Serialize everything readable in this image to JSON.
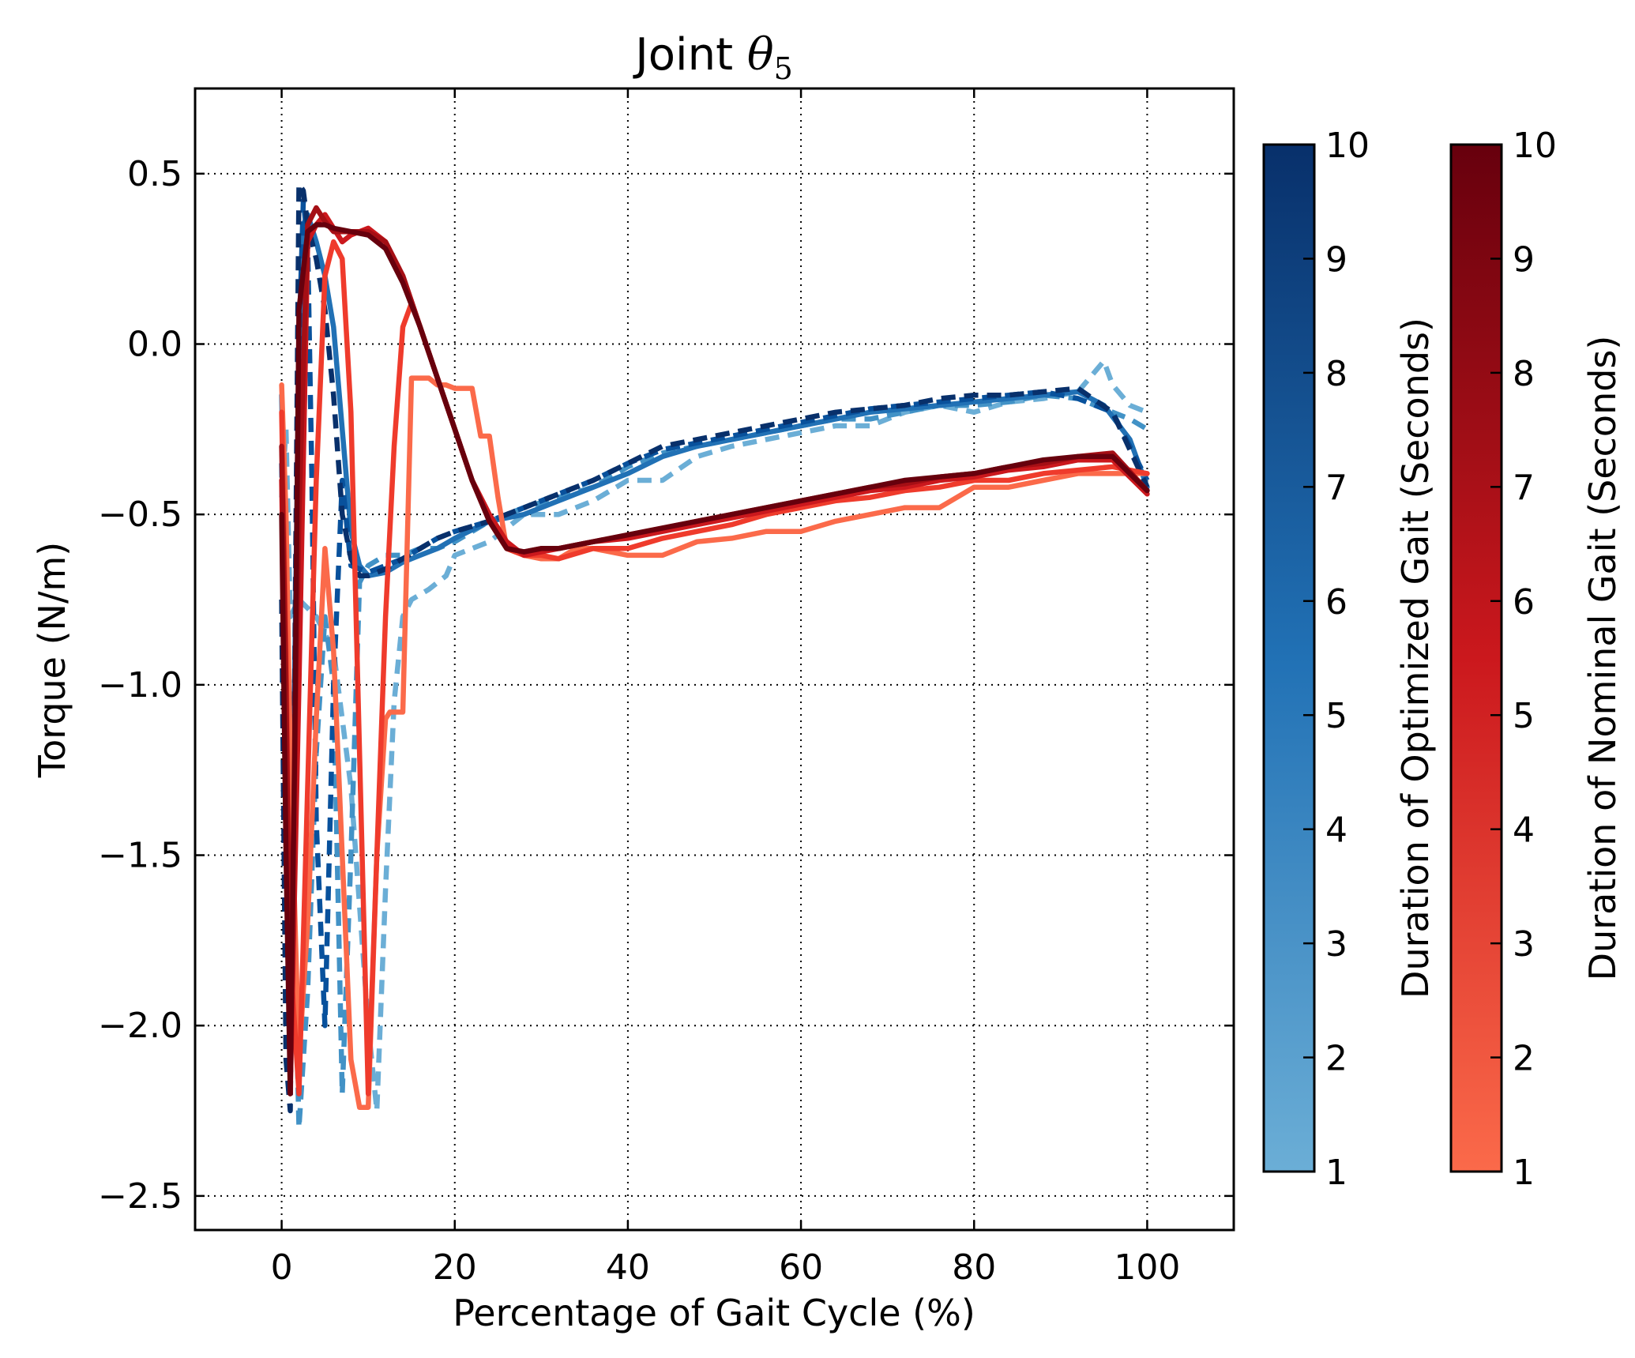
{
  "chart_data": {
    "type": "line",
    "title_prefix": "Joint ",
    "title_symbol": "θ",
    "title_subscript": "5",
    "xlabel": "Percentage of Gait Cycle (%)",
    "ylabel": "Torque (N/m)",
    "xlim": [
      -10,
      110
    ],
    "ylim": [
      -2.6,
      0.75
    ],
    "xticks": [
      0,
      20,
      40,
      60,
      80,
      100
    ],
    "yticks": [
      0.5,
      0.0,
      -0.5,
      -1.0,
      -1.5,
      -2.0,
      -2.5
    ],
    "xtick_labels": [
      "0",
      "20",
      "40",
      "60",
      "80",
      "100"
    ],
    "ytick_labels": [
      "0.5",
      "0.0",
      "−0.5",
      "−1.0",
      "−1.5",
      "−2.0",
      "−2.5"
    ],
    "grid": true,
    "colorbars": [
      {
        "label": "Duration of Optimized Gait (Seconds)",
        "range": [
          1,
          10
        ],
        "ticks": [
          "1",
          "2",
          "3",
          "4",
          "5",
          "6",
          "7",
          "8",
          "9",
          "10"
        ],
        "color_low": "#6baed6",
        "color_mid": "#2171b5",
        "color_high": "#08306b"
      },
      {
        "label": "Duration of Nominal Gait (Seconds)",
        "range": [
          1,
          10
        ],
        "ticks": [
          "1",
          "2",
          "3",
          "4",
          "5",
          "6",
          "7",
          "8",
          "9",
          "10"
        ],
        "color_low": "#fb6a4a",
        "color_mid": "#cb181d",
        "color_high": "#67000d"
      }
    ],
    "series": [
      {
        "group": "optimized",
        "duration": 1,
        "dashed": true,
        "color": "#6baed6",
        "x": [
          0,
          0.5,
          1,
          2,
          4,
          6,
          8,
          10,
          11,
          12,
          13,
          14,
          15,
          17,
          19,
          20,
          24,
          28,
          32,
          36,
          40,
          44,
          48,
          52,
          56,
          60,
          64,
          68,
          72,
          76,
          80,
          84,
          88,
          92,
          95,
          96,
          98,
          100
        ],
        "y": [
          -0.45,
          -0.25,
          -0.8,
          -0.75,
          -0.8,
          -0.9,
          -1.3,
          -2.0,
          -2.25,
          -1.6,
          -1.05,
          -0.8,
          -0.75,
          -0.72,
          -0.68,
          -0.62,
          -0.58,
          -0.5,
          -0.5,
          -0.46,
          -0.4,
          -0.4,
          -0.33,
          -0.3,
          -0.28,
          -0.26,
          -0.24,
          -0.24,
          -0.2,
          -0.18,
          -0.2,
          -0.17,
          -0.16,
          -0.14,
          -0.05,
          -0.12,
          -0.18,
          -0.2
        ]
      },
      {
        "group": "optimized",
        "duration": 3,
        "dashed": true,
        "color": "#4292c6",
        "x": [
          0,
          0.5,
          1,
          2,
          3,
          4,
          5,
          6,
          7,
          8,
          9,
          10,
          12,
          14,
          16,
          18,
          20,
          24,
          28,
          32,
          36,
          40,
          44,
          48,
          52,
          56,
          60,
          64,
          68,
          72,
          76,
          80,
          84,
          88,
          92,
          96,
          98,
          100
        ],
        "y": [
          -0.3,
          -0.6,
          -1.2,
          -2.3,
          -1.9,
          -1.2,
          -0.8,
          -1.0,
          -2.2,
          -1.5,
          -0.7,
          -0.65,
          -0.62,
          -0.62,
          -0.6,
          -0.6,
          -0.58,
          -0.52,
          -0.48,
          -0.45,
          -0.42,
          -0.36,
          -0.32,
          -0.3,
          -0.28,
          -0.26,
          -0.24,
          -0.22,
          -0.22,
          -0.2,
          -0.18,
          -0.18,
          -0.17,
          -0.15,
          -0.16,
          -0.2,
          -0.22,
          -0.25
        ]
      },
      {
        "group": "optimized",
        "duration": 6,
        "dashed": false,
        "color": "#2171b5",
        "x": [
          0,
          0.5,
          1,
          1.5,
          2,
          2.5,
          3,
          4,
          5,
          6,
          7,
          8,
          9,
          10,
          12,
          14,
          16,
          18,
          20,
          24,
          28,
          32,
          36,
          40,
          44,
          48,
          52,
          56,
          60,
          64,
          68,
          72,
          76,
          80,
          84,
          88,
          92,
          95,
          98,
          100
        ],
        "y": [
          -0.15,
          -0.8,
          -1.7,
          -1.0,
          -0.3,
          0.35,
          0.38,
          0.3,
          0.2,
          0.05,
          -0.25,
          -0.55,
          -0.65,
          -0.68,
          -0.67,
          -0.64,
          -0.62,
          -0.6,
          -0.57,
          -0.52,
          -0.5,
          -0.46,
          -0.42,
          -0.38,
          -0.33,
          -0.3,
          -0.28,
          -0.26,
          -0.24,
          -0.22,
          -0.2,
          -0.19,
          -0.18,
          -0.17,
          -0.16,
          -0.15,
          -0.14,
          -0.18,
          -0.28,
          -0.42
        ]
      },
      {
        "group": "optimized",
        "duration": 8,
        "dashed": true,
        "color": "#08519c",
        "x": [
          0,
          0.5,
          1,
          1.5,
          2,
          2.5,
          3,
          3.5,
          4,
          5,
          6,
          7,
          8,
          9,
          10,
          12,
          14,
          16,
          18,
          20,
          24,
          28,
          32,
          36,
          40,
          44,
          48,
          52,
          56,
          60,
          64,
          68,
          72,
          76,
          80,
          84,
          88,
          92,
          96,
          100
        ],
        "y": [
          -0.35,
          -1.2,
          -2.1,
          -1.0,
          0.0,
          0.42,
          0.3,
          -0.4,
          -1.4,
          -2.0,
          -1.0,
          -0.4,
          -0.65,
          -0.66,
          -0.67,
          -0.65,
          -0.63,
          -0.6,
          -0.57,
          -0.55,
          -0.52,
          -0.48,
          -0.44,
          -0.4,
          -0.35,
          -0.31,
          -0.29,
          -0.27,
          -0.25,
          -0.23,
          -0.21,
          -0.19,
          -0.18,
          -0.17,
          -0.16,
          -0.15,
          -0.14,
          -0.16,
          -0.2,
          -0.4
        ]
      },
      {
        "group": "optimized",
        "duration": 10,
        "dashed": true,
        "color": "#08306b",
        "x": [
          0,
          0.5,
          1,
          1.5,
          2,
          2.5,
          3,
          4,
          5,
          6,
          7,
          8,
          9,
          10,
          11,
          12,
          14,
          16,
          18,
          20,
          24,
          28,
          32,
          36,
          40,
          44,
          48,
          52,
          56,
          60,
          64,
          68,
          72,
          76,
          80,
          84,
          88,
          92,
          96,
          100
        ],
        "y": [
          -0.75,
          -2.1,
          -2.25,
          -1.0,
          0.47,
          0.45,
          0.35,
          0.25,
          0.1,
          -0.15,
          -0.5,
          -0.63,
          -0.68,
          -0.68,
          -0.67,
          -0.66,
          -0.63,
          -0.6,
          -0.57,
          -0.55,
          -0.52,
          -0.48,
          -0.44,
          -0.4,
          -0.35,
          -0.3,
          -0.28,
          -0.26,
          -0.24,
          -0.22,
          -0.2,
          -0.19,
          -0.18,
          -0.16,
          -0.15,
          -0.15,
          -0.14,
          -0.13,
          -0.2,
          -0.42
        ]
      },
      {
        "group": "nominal",
        "duration": 1,
        "dashed": false,
        "color": "#fb6a4a",
        "x": [
          0,
          0.5,
          1,
          2,
          3,
          4,
          5,
          6,
          7,
          8,
          9,
          10,
          11,
          12,
          12.5,
          13,
          14,
          15,
          16,
          17,
          18,
          19,
          20,
          22,
          23,
          24,
          25,
          26,
          28,
          30,
          32,
          34,
          36,
          40,
          44,
          48,
          52,
          56,
          60,
          64,
          68,
          72,
          76,
          80,
          84,
          88,
          92,
          96,
          100
        ],
        "y": [
          -0.12,
          -0.5,
          -1.2,
          -2.1,
          -1.7,
          -1.1,
          -0.6,
          -0.9,
          -1.5,
          -2.1,
          -2.24,
          -2.24,
          -1.5,
          -1.1,
          -1.08,
          -1.08,
          -1.08,
          -0.1,
          -0.1,
          -0.1,
          -0.12,
          -0.12,
          -0.13,
          -0.13,
          -0.27,
          -0.27,
          -0.45,
          -0.6,
          -0.62,
          -0.63,
          -0.63,
          -0.6,
          -0.6,
          -0.62,
          -0.62,
          -0.58,
          -0.57,
          -0.55,
          -0.55,
          -0.52,
          -0.5,
          -0.48,
          -0.48,
          -0.42,
          -0.42,
          -0.4,
          -0.38,
          -0.38,
          -0.38
        ]
      },
      {
        "group": "nominal",
        "duration": 3,
        "dashed": false,
        "color": "#ef3b2c",
        "x": [
          0,
          0.5,
          1,
          2,
          3,
          4,
          5,
          6,
          7,
          8,
          9,
          10,
          11,
          12,
          13,
          14,
          15,
          16,
          18,
          20,
          22,
          24,
          26,
          28,
          30,
          32,
          36,
          40,
          44,
          48,
          52,
          56,
          60,
          64,
          68,
          72,
          76,
          80,
          84,
          88,
          92,
          96,
          100
        ],
        "y": [
          -0.2,
          -0.9,
          -1.8,
          -2.2,
          -1.3,
          -0.4,
          0.2,
          0.3,
          0.25,
          -0.2,
          -1.2,
          -2.2,
          -1.5,
          -0.8,
          -0.3,
          0.05,
          0.12,
          0.05,
          -0.1,
          -0.25,
          -0.4,
          -0.52,
          -0.6,
          -0.62,
          -0.62,
          -0.63,
          -0.6,
          -0.6,
          -0.57,
          -0.55,
          -0.53,
          -0.5,
          -0.48,
          -0.46,
          -0.45,
          -0.43,
          -0.42,
          -0.4,
          -0.4,
          -0.38,
          -0.37,
          -0.36,
          -0.38
        ]
      },
      {
        "group": "nominal",
        "duration": 5,
        "dashed": false,
        "color": "#cb181d",
        "x": [
          0,
          0.5,
          1,
          2,
          3,
          4,
          5,
          6,
          7,
          8,
          10,
          12,
          14,
          16,
          18,
          20,
          22,
          24,
          26,
          28,
          30,
          32,
          36,
          40,
          44,
          48,
          52,
          56,
          60,
          64,
          68,
          72,
          76,
          80,
          84,
          88,
          92,
          96,
          100
        ],
        "y": [
          -0.4,
          -1.2,
          -2.2,
          -1.0,
          0.3,
          0.35,
          0.38,
          0.34,
          0.3,
          0.32,
          0.34,
          0.3,
          0.2,
          0.05,
          -0.1,
          -0.25,
          -0.4,
          -0.5,
          -0.58,
          -0.62,
          -0.61,
          -0.6,
          -0.58,
          -0.57,
          -0.55,
          -0.53,
          -0.51,
          -0.49,
          -0.47,
          -0.45,
          -0.43,
          -0.42,
          -0.4,
          -0.39,
          -0.37,
          -0.36,
          -0.34,
          -0.34,
          -0.44
        ]
      },
      {
        "group": "nominal",
        "duration": 8,
        "dashed": false,
        "color": "#a50f15",
        "x": [
          0,
          0.5,
          1,
          2,
          3,
          4,
          5,
          6,
          8,
          10,
          12,
          14,
          16,
          18,
          20,
          22,
          24,
          26,
          28,
          30,
          32,
          36,
          40,
          44,
          48,
          52,
          56,
          60,
          64,
          68,
          72,
          76,
          80,
          84,
          88,
          92,
          96,
          100
        ],
        "y": [
          -0.3,
          -1.0,
          -2.0,
          -0.5,
          0.35,
          0.4,
          0.36,
          0.33,
          0.33,
          0.33,
          0.3,
          0.2,
          0.05,
          -0.1,
          -0.25,
          -0.4,
          -0.52,
          -0.6,
          -0.61,
          -0.6,
          -0.6,
          -0.58,
          -0.56,
          -0.54,
          -0.52,
          -0.5,
          -0.48,
          -0.46,
          -0.44,
          -0.42,
          -0.41,
          -0.39,
          -0.38,
          -0.36,
          -0.35,
          -0.33,
          -0.32,
          -0.43
        ]
      },
      {
        "group": "nominal",
        "duration": 10,
        "dashed": false,
        "color": "#67000d",
        "x": [
          0,
          0.5,
          1,
          1.5,
          2,
          3,
          4,
          5,
          6,
          8,
          10,
          12,
          14,
          16,
          18,
          20,
          22,
          24,
          26,
          28,
          30,
          32,
          36,
          40,
          44,
          48,
          52,
          56,
          60,
          64,
          68,
          72,
          76,
          80,
          84,
          88,
          92,
          96,
          100
        ],
        "y": [
          -0.5,
          -1.5,
          -2.2,
          -1.2,
          0.1,
          0.33,
          0.35,
          0.35,
          0.34,
          0.33,
          0.32,
          0.28,
          0.18,
          0.05,
          -0.1,
          -0.25,
          -0.4,
          -0.52,
          -0.6,
          -0.61,
          -0.6,
          -0.6,
          -0.58,
          -0.56,
          -0.54,
          -0.52,
          -0.5,
          -0.48,
          -0.46,
          -0.44,
          -0.42,
          -0.4,
          -0.39,
          -0.38,
          -0.36,
          -0.34,
          -0.33,
          -0.33,
          -0.43
        ]
      }
    ]
  }
}
